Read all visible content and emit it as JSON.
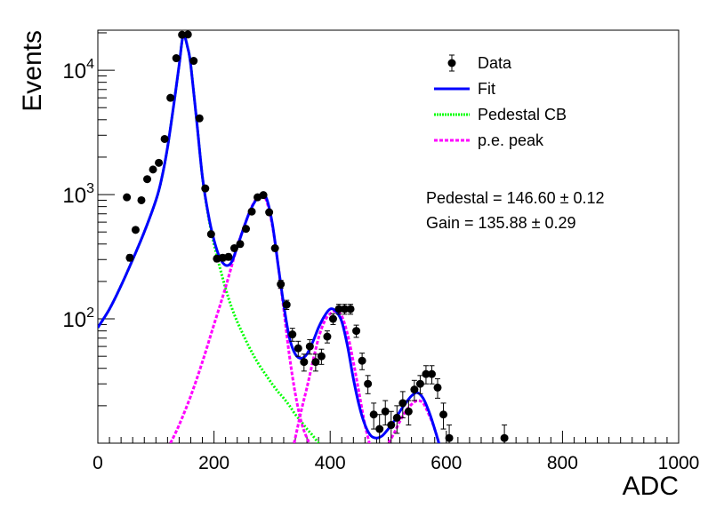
{
  "chart_data": {
    "type": "scatter",
    "title": "",
    "xlabel": "ADC",
    "ylabel": "Events",
    "xlim": [
      0,
      1000
    ],
    "ylim": [
      10,
      21000
    ],
    "yscale": "log",
    "x_ticks": [
      "0",
      "200",
      "400",
      "600",
      "800",
      "1000"
    ],
    "y_ticks": [
      {
        "base": "10",
        "exp": "2",
        "value": 100
      },
      {
        "base": "10",
        "exp": "3",
        "value": 1000
      },
      {
        "base": "10",
        "exp": "4",
        "value": 10000
      }
    ],
    "grid": false,
    "legend_position": "top-right",
    "legend": [
      {
        "label": "Data",
        "style": "marker",
        "color": "#000000"
      },
      {
        "label": "Fit",
        "style": "solid",
        "color": "#0000ff"
      },
      {
        "label": "Pedestal CB",
        "style": "dotted",
        "color": "#00ff00"
      },
      {
        "label": "p.e. peak",
        "style": "dashed",
        "color": "#ff00ff"
      }
    ],
    "annotations": [
      "Pedestal = 146.60 ± 0.12",
      "Gain = 135.88 ± 0.29"
    ],
    "series": [
      {
        "name": "Data",
        "kind": "points",
        "x": [
          50,
          55,
          65,
          75,
          85,
          95,
          105,
          115,
          125,
          135,
          145,
          155,
          165,
          175,
          185,
          195,
          205,
          215,
          225,
          235,
          245,
          255,
          265,
          275,
          285,
          295,
          305,
          315,
          325,
          335,
          345,
          355,
          365,
          375,
          385,
          395,
          405,
          415,
          425,
          435,
          445,
          455,
          465,
          475,
          485,
          495,
          505,
          515,
          525,
          535,
          545,
          555,
          565,
          575,
          585,
          595,
          605,
          700
        ],
        "y": [
          950,
          310,
          520,
          900,
          1330,
          1590,
          1800,
          2800,
          6000,
          12500,
          19300,
          19400,
          11900,
          4100,
          1120,
          480,
          305,
          310,
          315,
          370,
          400,
          530,
          730,
          950,
          990,
          720,
          370,
          190,
          130,
          75,
          58,
          45,
          60,
          45,
          50,
          72,
          100,
          120,
          120,
          120,
          80,
          46,
          30,
          17,
          13,
          18,
          14,
          16,
          21,
          18,
          27,
          30,
          36,
          36,
          28,
          17,
          11,
          11
        ],
        "yerr": [
          30,
          18,
          23,
          30,
          36,
          40,
          42,
          53,
          77,
          112,
          139,
          139,
          109,
          64,
          33,
          22,
          17,
          18,
          18,
          19,
          20,
          23,
          27,
          31,
          31,
          27,
          19,
          14,
          11,
          9,
          8,
          7,
          8,
          7,
          7,
          8,
          10,
          11,
          11,
          11,
          9,
          7,
          5,
          4,
          4,
          4,
          4,
          4,
          5,
          4,
          5,
          5,
          6,
          6,
          5,
          4,
          3,
          3
        ],
        "color": "#000000"
      },
      {
        "name": "Fit",
        "kind": "line",
        "x": [
          0,
          20,
          40,
          60,
          80,
          100,
          110,
          120,
          130,
          140,
          147,
          155,
          160,
          170,
          180,
          190,
          200,
          210,
          220,
          230,
          240,
          250,
          260,
          270,
          280,
          290,
          300,
          310,
          320,
          330,
          340,
          350,
          360,
          370,
          380,
          390,
          400,
          410,
          420,
          430,
          440,
          450,
          460,
          470,
          480,
          490,
          500,
          510,
          520,
          530,
          540,
          550,
          560,
          570,
          580,
          590
        ],
        "y": [
          85,
          120,
          185,
          300,
          500,
          900,
          1350,
          2400,
          5000,
          11000,
          19000,
          15000,
          11000,
          4000,
          1400,
          700,
          430,
          310,
          270,
          285,
          380,
          520,
          700,
          870,
          1000,
          940,
          600,
          280,
          130,
          70,
          52,
          48,
          52,
          65,
          85,
          105,
          120,
          115,
          95,
          60,
          33,
          20,
          14,
          11.5,
          11,
          11.5,
          13,
          15,
          18,
          21,
          24,
          25.5,
          23,
          18,
          13,
          9
        ],
        "color": "#0000ff"
      },
      {
        "name": "Pedestal CB",
        "kind": "line",
        "x": [
          0,
          20,
          40,
          60,
          80,
          100,
          110,
          120,
          130,
          140,
          147,
          155,
          160,
          170,
          180,
          190,
          200,
          210,
          220,
          230,
          240,
          250,
          260,
          270,
          280,
          290,
          300,
          310,
          320,
          330,
          340,
          350,
          360,
          370,
          380
        ],
        "y": [
          85,
          120,
          185,
          300,
          500,
          900,
          1350,
          2400,
          5000,
          11000,
          19000,
          15000,
          11000,
          4000,
          1400,
          680,
          400,
          260,
          175,
          125,
          95,
          75,
          60,
          49,
          41,
          35,
          30,
          26,
          23,
          20,
          17,
          15,
          13,
          11.5,
          10
        ],
        "color": "#00ff00"
      },
      {
        "name": "p.e. peak 1",
        "kind": "line",
        "x": [
          125,
          140,
          160,
          180,
          200,
          220,
          240,
          260,
          270,
          280,
          290,
          300,
          310,
          320,
          330,
          340,
          350,
          360,
          370,
          380
        ],
        "y": [
          10,
          14,
          24,
          45,
          90,
          180,
          380,
          700,
          880,
          1000,
          900,
          580,
          280,
          120,
          50,
          25,
          15,
          11,
          9,
          7
        ],
        "color": "#ff00ff"
      },
      {
        "name": "p.e. peak 2",
        "kind": "line",
        "x": [
          338,
          350,
          360,
          370,
          380,
          390,
          400,
          410,
          420,
          430,
          440,
          450,
          460,
          470
        ],
        "y": [
          10,
          18,
          28,
          45,
          70,
          95,
          110,
          115,
          105,
          75,
          45,
          25,
          14,
          9
        ],
        "color": "#ff00ff"
      },
      {
        "name": "p.e. peak 3",
        "kind": "line",
        "x": [
          470,
          480,
          490,
          500,
          510,
          520,
          530,
          540,
          550,
          560,
          570,
          580,
          590
        ],
        "y": [
          7,
          8,
          9,
          10,
          12,
          15,
          18,
          20.5,
          22,
          21,
          17,
          13,
          9
        ],
        "color": "#ff00ff"
      }
    ]
  }
}
